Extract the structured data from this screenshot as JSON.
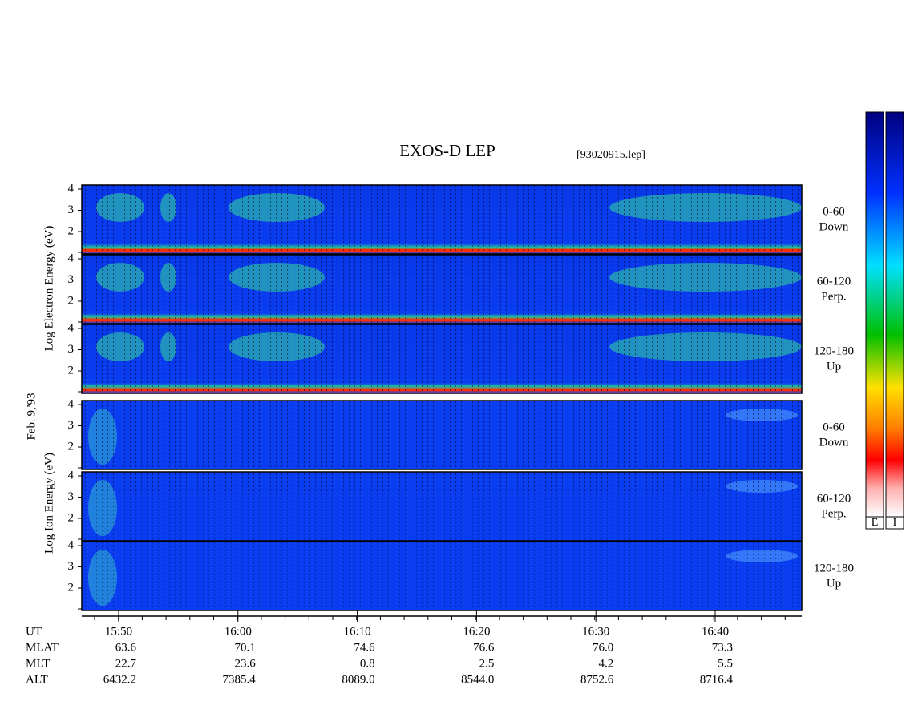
{
  "header": {
    "title": "EXOS-D LEP",
    "file": "[93020915.lep]"
  },
  "date": "Feb. 9,'93",
  "electron": {
    "label": "Log Electron Energy (eV)",
    "panels": [
      {
        "yticks": [
          "4",
          "3",
          "2"
        ],
        "range": "0-60",
        "direction": "Down"
      },
      {
        "yticks": [
          "4",
          "3",
          "2"
        ],
        "range": "60-120",
        "direction": "Perp."
      },
      {
        "yticks": [
          "4",
          "3",
          "2"
        ],
        "range": "120-180",
        "direction": "Up"
      }
    ]
  },
  "ion": {
    "label": "Log Ion Energy (eV)",
    "panels": [
      {
        "yticks": [
          "4",
          "3",
          "2"
        ],
        "range": "0-60",
        "direction": "Down"
      },
      {
        "yticks": [
          "4",
          "3",
          "2"
        ],
        "range": "60-120",
        "direction": "Perp."
      },
      {
        "yticks": [
          "4",
          "3",
          "2"
        ],
        "range": "120-180",
        "direction": "Up"
      }
    ]
  },
  "ephemeris": {
    "labels": [
      "UT",
      "MLAT",
      "MLT",
      "ALT"
    ],
    "columns": [
      [
        "15:50",
        "63.6",
        "22.7",
        "6432.2"
      ],
      [
        "16:00",
        "70.1",
        "23.6",
        "7385.4"
      ],
      [
        "16:10",
        "74.6",
        "0.8",
        "8089.0"
      ],
      [
        "16:20",
        "76.6",
        "2.5",
        "8544.0"
      ],
      [
        "16:30",
        "76.0",
        "4.2",
        "8752.6"
      ],
      [
        "16:40",
        "73.3",
        "5.5",
        "8716.4"
      ]
    ]
  },
  "colorbar": {
    "labels": [
      "E",
      "I"
    ]
  }
}
